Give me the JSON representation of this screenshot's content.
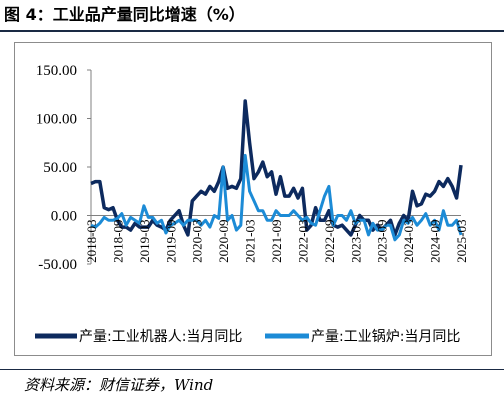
{
  "figure": {
    "title": "图 4：工业品产量同比增速（%）",
    "source": "资料来源：财信证券，Wind"
  },
  "chart_data": {
    "type": "line",
    "ylim": [
      -50,
      150
    ],
    "yticks": [
      "150.00",
      "100.00",
      "50.00",
      "0.00",
      "-50.00"
    ],
    "ytick_values": [
      150,
      100,
      50,
      0,
      -50
    ],
    "x_tick_labels": [
      "2018-03",
      "2018-09",
      "2019-03",
      "2019-09",
      "2020-03",
      "2020-09",
      "2021-03",
      "2021-09",
      "2022-03",
      "2022-09",
      "2023-03",
      "2023-09",
      "2024-03",
      "2024-09",
      "2025-03"
    ],
    "x": [
      "2018-03",
      "2018-04",
      "2018-05",
      "2018-06",
      "2018-07",
      "2018-08",
      "2018-09",
      "2018-10",
      "2018-11",
      "2018-12",
      "2019-01",
      "2019-02",
      "2019-03",
      "2019-04",
      "2019-05",
      "2019-06",
      "2019-07",
      "2019-08",
      "2019-09",
      "2019-10",
      "2019-11",
      "2019-12",
      "2020-01",
      "2020-02",
      "2020-03",
      "2020-04",
      "2020-05",
      "2020-06",
      "2020-07",
      "2020-08",
      "2020-09",
      "2020-10",
      "2020-11",
      "2020-12",
      "2021-01",
      "2021-02",
      "2021-03",
      "2021-04",
      "2021-05",
      "2021-06",
      "2021-07",
      "2021-08",
      "2021-09",
      "2021-10",
      "2021-11",
      "2021-12",
      "2022-01",
      "2022-02",
      "2022-03",
      "2022-04",
      "2022-05",
      "2022-06",
      "2022-07",
      "2022-08",
      "2022-09",
      "2022-10",
      "2022-11",
      "2022-12",
      "2023-01",
      "2023-02",
      "2023-03",
      "2023-04",
      "2023-05",
      "2023-06",
      "2023-07",
      "2023-08",
      "2023-09",
      "2023-10",
      "2023-11",
      "2023-12",
      "2024-01",
      "2024-02",
      "2024-03",
      "2024-04",
      "2024-05",
      "2024-06",
      "2024-07",
      "2024-08",
      "2024-09",
      "2024-10",
      "2024-11",
      "2024-12",
      "2025-01",
      "2025-02",
      "2025-03"
    ],
    "series": [
      {
        "name": "产量:工业机器人:当月同比",
        "color": "#0d2a5e",
        "values": [
          33,
          35,
          35,
          8,
          6,
          8,
          -5,
          -12,
          -12,
          -15,
          -8,
          -12,
          -12,
          -12,
          -5,
          -10,
          -12,
          -15,
          -5,
          0,
          5,
          -10,
          -20,
          15,
          20,
          25,
          22,
          30,
          25,
          35,
          50,
          28,
          30,
          28,
          38,
          118,
          75,
          38,
          45,
          55,
          40,
          45,
          22,
          40,
          20,
          20,
          28,
          18,
          28,
          -15,
          -10,
          8,
          -5,
          -5,
          5,
          -10,
          -12,
          -10,
          -15,
          -20,
          -10,
          0,
          -5,
          -5,
          -15,
          -10,
          -15,
          -10,
          -5,
          -20,
          -8,
          0,
          -5,
          25,
          10,
          12,
          22,
          20,
          25,
          35,
          30,
          38,
          30,
          18,
          52
        ]
      },
      {
        "name": "产量:工业锅炉:当月同比",
        "color": "#1c8bd6",
        "values": [
          -10,
          -12,
          -8,
          -2,
          -5,
          -5,
          -3,
          2,
          -10,
          -2,
          -5,
          -8,
          10,
          -2,
          -2,
          -8,
          -5,
          -18,
          -10,
          -8,
          -5,
          -10,
          -5,
          -5,
          -5,
          -10,
          -5,
          -12,
          0,
          -3,
          50,
          -5,
          0,
          -15,
          -10,
          62,
          25,
          15,
          5,
          5,
          -5,
          -5,
          5,
          0,
          0,
          0,
          5,
          0,
          -5,
          -2,
          -8,
          -10,
          5,
          20,
          30,
          -10,
          0,
          0,
          -5,
          5,
          -8,
          -5,
          -5,
          -20,
          -8,
          -15,
          -15,
          -10,
          -10,
          -25,
          -20,
          -5,
          -8,
          -2,
          -10,
          -5,
          2,
          -10,
          -5,
          -15,
          5,
          -10,
          -10,
          -5,
          -20
        ]
      }
    ],
    "legend_position": "bottom",
    "grid": false
  }
}
